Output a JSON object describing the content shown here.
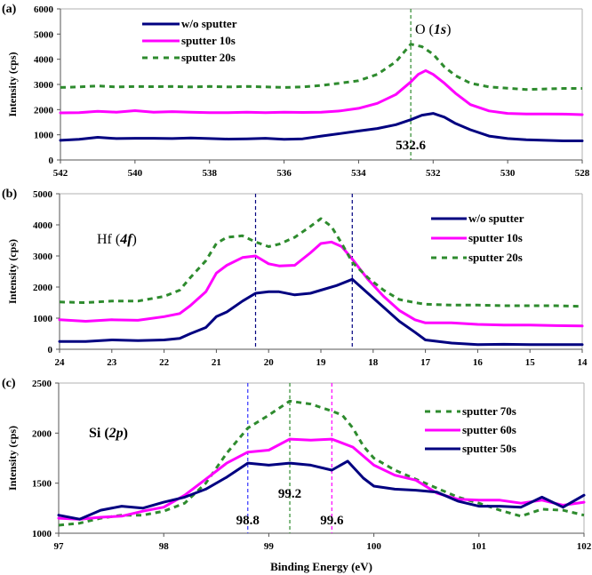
{
  "chart_data": [
    {
      "type": "line",
      "panel_label": "(a)",
      "title": "O (1s)",
      "title_parts": [
        "O (",
        "1s",
        ")"
      ],
      "xlabel": "",
      "ylabel": "Intensity (cps)",
      "xlim": [
        542,
        528
      ],
      "ylim": [
        0,
        6000
      ],
      "x_reversed": true,
      "xticks": [
        542,
        540,
        538,
        536,
        534,
        532,
        530,
        528
      ],
      "yticks": [
        0,
        1000,
        2000,
        3000,
        4000,
        5000,
        6000
      ],
      "grid": false,
      "legend_position": "top-left",
      "vlines": [
        {
          "x": 532.6,
          "color": "#2e8b2e",
          "label": "532.6"
        }
      ],
      "series": [
        {
          "name": "w/o sputter",
          "color": "#000080",
          "style": "solid",
          "x": [
            542,
            541.5,
            541,
            540.5,
            540,
            539.5,
            539,
            538.5,
            538,
            537.5,
            537,
            536.5,
            536,
            535.5,
            535,
            534.5,
            534,
            533.5,
            533,
            532.6,
            532.3,
            532,
            531.7,
            531.4,
            531,
            530.5,
            530,
            529.5,
            529,
            528.5,
            528
          ],
          "y": [
            780,
            820,
            900,
            850,
            860,
            860,
            850,
            870,
            850,
            830,
            840,
            860,
            820,
            840,
            950,
            1050,
            1150,
            1250,
            1400,
            1600,
            1780,
            1850,
            1700,
            1450,
            1200,
            950,
            850,
            800,
            780,
            760,
            760
          ]
        },
        {
          "name": "sputter 10s",
          "color": "#ff00ff",
          "style": "solid",
          "x": [
            542,
            541.5,
            541,
            540.5,
            540,
            539.5,
            539,
            538.5,
            538,
            537.5,
            537,
            536.5,
            536,
            535.5,
            535,
            534.5,
            534,
            533.5,
            533,
            532.6,
            532.4,
            532.2,
            532,
            531.7,
            531.4,
            531,
            530.5,
            530,
            529.5,
            529,
            528.5,
            528
          ],
          "y": [
            1870,
            1880,
            1930,
            1900,
            1960,
            1900,
            1920,
            1900,
            1880,
            1880,
            1900,
            1880,
            1900,
            1890,
            1900,
            1950,
            2050,
            2250,
            2600,
            3100,
            3400,
            3550,
            3400,
            3050,
            2650,
            2200,
            1950,
            1850,
            1830,
            1830,
            1820,
            1800
          ]
        },
        {
          "name": "sputter 20s",
          "color": "#2e8b2e",
          "style": "dashed",
          "x": [
            542,
            541.5,
            541,
            540.5,
            540,
            539.5,
            539,
            538.5,
            538,
            537.5,
            537,
            536.5,
            536,
            535.5,
            535,
            534.5,
            534,
            533.5,
            533,
            532.6,
            532.3,
            532,
            531.7,
            531.4,
            531,
            530.5,
            530,
            529.5,
            529,
            528.5,
            528
          ],
          "y": [
            2880,
            2900,
            2940,
            2900,
            2920,
            2910,
            2920,
            2900,
            2920,
            2900,
            2920,
            2900,
            2880,
            2900,
            2960,
            3050,
            3150,
            3400,
            3900,
            4600,
            4500,
            4200,
            3700,
            3350,
            3050,
            2900,
            2850,
            2800,
            2820,
            2840,
            2840
          ]
        }
      ]
    },
    {
      "type": "line",
      "panel_label": "(b)",
      "title": "Hf (4f)",
      "title_parts": [
        "Hf (",
        "4f",
        ")"
      ],
      "xlabel": "",
      "ylabel": "Intensity (cps)",
      "xlim": [
        24,
        14
      ],
      "ylim": [
        0,
        5000
      ],
      "x_reversed": true,
      "xticks": [
        24,
        23,
        22,
        21,
        20,
        19,
        18,
        17,
        16,
        15,
        14
      ],
      "yticks": [
        0,
        1000,
        2000,
        3000,
        4000,
        5000
      ],
      "grid": false,
      "legend_position": "top-right",
      "vlines": [
        {
          "x": 20.25,
          "color": "#000080"
        },
        {
          "x": 18.4,
          "color": "#000080"
        }
      ],
      "series": [
        {
          "name": "w/o sputter",
          "color": "#000080",
          "style": "solid",
          "x": [
            24,
            23.5,
            23,
            22.5,
            22,
            21.7,
            21.5,
            21.2,
            21,
            20.8,
            20.5,
            20.25,
            20,
            19.8,
            19.5,
            19.2,
            19,
            18.7,
            18.4,
            18.1,
            17.8,
            17.5,
            17.2,
            17,
            16.5,
            16,
            15.5,
            15,
            14.5,
            14
          ],
          "y": [
            250,
            250,
            300,
            280,
            300,
            350,
            500,
            700,
            1050,
            1200,
            1550,
            1800,
            1850,
            1850,
            1750,
            1800,
            1900,
            2050,
            2250,
            1800,
            1350,
            900,
            550,
            300,
            200,
            150,
            160,
            150,
            150,
            150
          ]
        },
        {
          "name": "sputter 10s",
          "color": "#ff00ff",
          "style": "solid",
          "x": [
            24,
            23.5,
            23,
            22.5,
            22,
            21.7,
            21.5,
            21.2,
            21,
            20.8,
            20.5,
            20.25,
            20,
            19.8,
            19.5,
            19.2,
            19,
            18.8,
            18.6,
            18.4,
            18.1,
            17.8,
            17.5,
            17.2,
            17,
            16.5,
            16,
            15.5,
            15,
            14.5,
            14
          ],
          "y": [
            950,
            900,
            950,
            930,
            1050,
            1150,
            1400,
            1850,
            2450,
            2700,
            2950,
            3000,
            2750,
            2680,
            2700,
            3100,
            3400,
            3450,
            3300,
            2900,
            2250,
            1700,
            1250,
            950,
            850,
            850,
            800,
            780,
            780,
            760,
            750
          ]
        },
        {
          "name": "sputter 20s",
          "color": "#2e8b2e",
          "style": "dashed",
          "x": [
            24,
            23.5,
            23,
            22.5,
            22,
            21.7,
            21.5,
            21.2,
            21,
            20.8,
            20.5,
            20.25,
            20,
            19.8,
            19.5,
            19.2,
            19,
            18.8,
            18.6,
            18.4,
            18.1,
            17.8,
            17.5,
            17.2,
            17,
            16.5,
            16,
            15.5,
            15,
            14.5,
            14
          ],
          "y": [
            1520,
            1500,
            1550,
            1550,
            1700,
            1900,
            2300,
            2850,
            3400,
            3600,
            3650,
            3450,
            3300,
            3380,
            3600,
            3950,
            4200,
            3950,
            3400,
            2800,
            2300,
            1900,
            1600,
            1500,
            1450,
            1420,
            1420,
            1400,
            1400,
            1400,
            1380
          ]
        }
      ]
    },
    {
      "type": "line",
      "panel_label": "(c)",
      "title": "Si (2p)",
      "title_parts": [
        "Si (",
        "2p",
        ")"
      ],
      "xlabel": "Binding Energy (eV)",
      "ylabel": "Intensity (cps)",
      "xlim": [
        97,
        102
      ],
      "ylim": [
        1000,
        2500
      ],
      "x_reversed": false,
      "xticks": [
        97,
        98,
        99,
        100,
        101,
        102
      ],
      "yticks": [
        1000,
        1500,
        2000,
        2500
      ],
      "grid": false,
      "legend_position": "top-right",
      "vlines": [
        {
          "x": 98.8,
          "color": "#3333ff",
          "label": "98.8"
        },
        {
          "x": 99.2,
          "color": "#2e8b2e",
          "label": "99.2"
        },
        {
          "x": 99.6,
          "color": "#ff00ff",
          "label": "99.6"
        }
      ],
      "series": [
        {
          "name": "sputter 70s",
          "color": "#2e8b2e",
          "style": "dashed",
          "x": [
            97,
            97.2,
            97.4,
            97.6,
            97.8,
            98,
            98.2,
            98.4,
            98.6,
            98.8,
            99,
            99.2,
            99.4,
            99.6,
            99.7,
            99.8,
            99.9,
            100,
            100.2,
            100.4,
            100.6,
            100.8,
            101,
            101.2,
            101.4,
            101.6,
            101.8,
            102
          ],
          "y": [
            1080,
            1100,
            1150,
            1180,
            1180,
            1220,
            1300,
            1500,
            1800,
            2050,
            2180,
            2320,
            2290,
            2220,
            2180,
            2050,
            1870,
            1750,
            1630,
            1540,
            1450,
            1360,
            1300,
            1230,
            1170,
            1240,
            1230,
            1180
          ]
        },
        {
          "name": "sputter 60s",
          "color": "#ff00ff",
          "style": "solid",
          "x": [
            97,
            97.2,
            97.4,
            97.6,
            97.8,
            98,
            98.2,
            98.4,
            98.6,
            98.8,
            99,
            99.2,
            99.4,
            99.6,
            99.8,
            100,
            100.2,
            100.4,
            100.6,
            100.8,
            101,
            101.2,
            101.4,
            101.6,
            101.8,
            102
          ],
          "y": [
            1150,
            1140,
            1160,
            1170,
            1220,
            1260,
            1380,
            1540,
            1700,
            1810,
            1830,
            1940,
            1930,
            1940,
            1860,
            1680,
            1580,
            1530,
            1400,
            1340,
            1330,
            1330,
            1300,
            1330,
            1280,
            1310
          ]
        },
        {
          "name": "sputter 50s",
          "color": "#000080",
          "style": "solid",
          "x": [
            97,
            97.2,
            97.4,
            97.6,
            97.8,
            98,
            98.2,
            98.4,
            98.6,
            98.8,
            99,
            99.2,
            99.4,
            99.6,
            99.75,
            99.9,
            100,
            100.2,
            100.4,
            100.6,
            100.8,
            101,
            101.2,
            101.4,
            101.6,
            101.8,
            102
          ],
          "y": [
            1180,
            1140,
            1230,
            1270,
            1250,
            1310,
            1360,
            1440,
            1560,
            1700,
            1680,
            1700,
            1680,
            1630,
            1720,
            1550,
            1470,
            1440,
            1430,
            1410,
            1320,
            1270,
            1270,
            1260,
            1360,
            1260,
            1380
          ]
        }
      ]
    }
  ]
}
